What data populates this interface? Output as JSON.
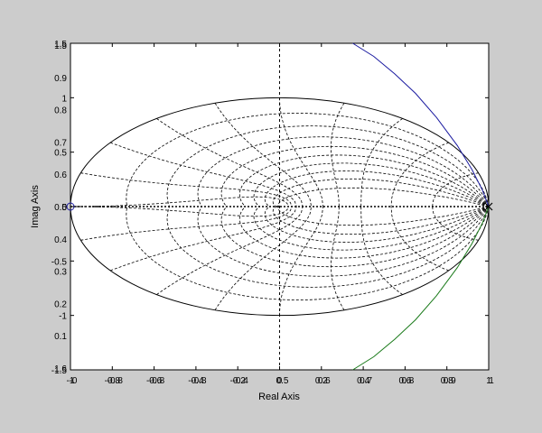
{
  "chart_data": {
    "type": "line",
    "title": "",
    "xlabel": "Real Axis",
    "ylabel": "Imag Axis",
    "xlim": [
      -1,
      1
    ],
    "ylim": [
      -1.5,
      1.5
    ],
    "grid": "zgrid (constant damping and natural frequency loci)",
    "x_tick_labels": [
      "-1",
      "-0.8",
      "-0.6",
      "-0.4",
      "-0.2",
      "0",
      "0.2",
      "0.4",
      "0.6",
      "0.8",
      "1"
    ],
    "x_tick_overlays": [
      "-0",
      "-0.8",
      "-0.8",
      "-0.8",
      "-0.4",
      "0.5",
      "0.6",
      "0.7",
      "0.8",
      "0.9",
      "1"
    ],
    "y_tick_labels_left": [
      "1.5",
      "1",
      "0.5",
      "0",
      "-0.5",
      "-1",
      "-1.5"
    ],
    "y_grid_labels": [
      "1.5",
      "0.9",
      "0.8",
      "0.7",
      "0.6",
      "0.5",
      "0.4",
      "0.3",
      "0.2",
      "0.1",
      "1.6"
    ],
    "unit_circle": {
      "center": [
        0,
        0
      ],
      "radius": 1
    },
    "series": [
      {
        "color": "#1a1aa0",
        "x": [
          0.35,
          0.45,
          0.55,
          0.65,
          0.75,
          0.85,
          0.92,
          0.97,
          1.0
        ],
        "y": [
          1.5,
          1.38,
          1.22,
          1.04,
          0.82,
          0.56,
          0.34,
          0.15,
          0.0
        ]
      },
      {
        "color": "#1a7a1a",
        "x": [
          0.35,
          0.45,
          0.55,
          0.65,
          0.75,
          0.85,
          0.92,
          0.97,
          1.0
        ],
        "y": [
          -1.5,
          -1.38,
          -1.22,
          -1.04,
          -0.82,
          -0.56,
          -0.34,
          -0.15,
          0.0
        ]
      }
    ],
    "markers": [
      {
        "type": "o",
        "color": "#1a1aa0",
        "x": -1.0,
        "y": 0.0
      },
      {
        "type": "x",
        "color": "#000000",
        "x": 1.0,
        "y": 0.0
      }
    ]
  },
  "colors": {
    "figure_bg": "#cccccc",
    "axes_bg": "#ffffff",
    "grid": "#000000"
  }
}
